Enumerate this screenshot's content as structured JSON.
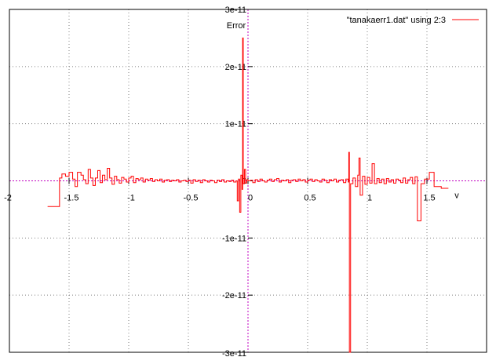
{
  "chart_data": {
    "type": "line",
    "style": "steps",
    "title": "",
    "xlabel": "v",
    "ylabel": "Error",
    "xlim": [
      -2,
      2
    ],
    "ylim": [
      -3e-11,
      3e-11
    ],
    "xticks": [
      -2,
      -1.5,
      -1,
      -0.5,
      0,
      0.5,
      1,
      1.5
    ],
    "xtick_labels": [
      "-2",
      "-1.5",
      "-1",
      "-0.5",
      "0",
      "0.5",
      "1",
      "1.5"
    ],
    "yticks": [
      -3e-11,
      -2e-11,
      -1e-11,
      0,
      1e-11,
      2e-11,
      3e-11
    ],
    "ytick_labels": [
      "-3e-11",
      "-2e-11",
      "-1e-11",
      "0",
      "1e-11",
      "2e-11",
      "3e-11"
    ],
    "grid": true,
    "axes_style": "zero-axes",
    "legend_position": "top-right",
    "colors": {
      "series": "#ff0000",
      "zero_axis": "#c000c0",
      "grid": "#808080",
      "frame": "#000000"
    },
    "series": [
      {
        "name": "\"tanakaerr1.dat\" using 2:3",
        "points": [
          [
            -1.68,
            -4.5e-12
          ],
          [
            -1.58,
            5e-13
          ],
          [
            -1.56,
            1.2e-12
          ],
          [
            -1.53,
            8e-13
          ],
          [
            -1.5,
            1.5e-12
          ],
          [
            -1.47,
            3e-13
          ],
          [
            -1.45,
            -1e-12
          ],
          [
            -1.43,
            1.5e-12
          ],
          [
            -1.4,
            1e-12
          ],
          [
            -1.38,
            2e-13
          ],
          [
            -1.36,
            -5e-13
          ],
          [
            -1.34,
            2e-12
          ],
          [
            -1.32,
            5e-13
          ],
          [
            -1.3,
            -8e-13
          ],
          [
            -1.28,
            5e-13
          ],
          [
            -1.26,
            1.8e-12
          ],
          [
            -1.24,
            -3e-13
          ],
          [
            -1.22,
            1e-12
          ],
          [
            -1.2,
            2e-13
          ],
          [
            -1.18,
            2.2e-12
          ],
          [
            -1.16,
            5e-13
          ],
          [
            -1.14,
            -6e-13
          ],
          [
            -1.12,
            8e-13
          ],
          [
            -1.1,
            2e-13
          ],
          [
            -1.08,
            -4e-13
          ],
          [
            -1.06,
            6e-13
          ],
          [
            -1.04,
            3e-13
          ],
          [
            -1.02,
            -2e-13
          ],
          [
            -1.0,
            5e-13
          ],
          [
            -0.98,
            8e-13
          ],
          [
            -0.96,
            -3e-13
          ],
          [
            -0.94,
            4e-13
          ],
          [
            -0.92,
            2e-13
          ],
          [
            -0.9,
            5e-13
          ],
          [
            -0.88,
            -2e-13
          ],
          [
            -0.86,
            3e-13
          ],
          [
            -0.84,
            1e-13
          ],
          [
            -0.82,
            4e-13
          ],
          [
            -0.8,
            -1e-13
          ],
          [
            -0.78,
            2e-13
          ],
          [
            -0.76,
            0.0
          ],
          [
            -0.74,
            3e-13
          ],
          [
            -0.72,
            -2e-13
          ],
          [
            -0.7,
            1e-13
          ],
          [
            -0.68,
            2e-13
          ],
          [
            -0.66,
            -1e-13
          ],
          [
            -0.64,
            1e-13
          ],
          [
            -0.62,
            0.0
          ],
          [
            -0.6,
            2e-13
          ],
          [
            -0.58,
            -2e-13
          ],
          [
            -0.56,
            0.0
          ],
          [
            -0.54,
            1e-13
          ],
          [
            -0.52,
            -1e-13
          ],
          [
            -0.5,
            1e-13
          ],
          [
            -0.48,
            -4e-13
          ],
          [
            -0.46,
            2e-13
          ],
          [
            -0.44,
            -1e-13
          ],
          [
            -0.42,
            1e-13
          ],
          [
            -0.4,
            -3e-13
          ],
          [
            -0.38,
            2e-13
          ],
          [
            -0.36,
            0.0
          ],
          [
            -0.34,
            -2e-13
          ],
          [
            -0.32,
            1e-13
          ],
          [
            -0.3,
            0.0
          ],
          [
            -0.28,
            -3e-13
          ],
          [
            -0.26,
            1e-13
          ],
          [
            -0.24,
            -1e-13
          ],
          [
            -0.22,
            2e-13
          ],
          [
            -0.2,
            -2e-13
          ],
          [
            -0.18,
            0.0
          ],
          [
            -0.16,
            -1e-13
          ],
          [
            -0.14,
            1e-13
          ],
          [
            -0.12,
            -2e-13
          ],
          [
            -0.1,
            0.0
          ],
          [
            -0.09,
            -3.5e-12
          ],
          [
            -0.08,
            3e-13
          ],
          [
            -0.07,
            -5.5e-12
          ],
          [
            -0.06,
            1e-12
          ],
          [
            -0.05,
            -1.5e-12
          ],
          [
            -0.045,
            2.5e-11
          ],
          [
            -0.04,
            -5e-13
          ],
          [
            -0.03,
            2e-12
          ],
          [
            -0.02,
            -4e-13
          ],
          [
            -0.01,
            2e-13
          ],
          [
            0.0,
            0.0
          ],
          [
            0.02,
            1e-13
          ],
          [
            0.04,
            -3e-13
          ],
          [
            0.06,
            2e-13
          ],
          [
            0.08,
            -1e-13
          ],
          [
            0.1,
            3e-13
          ],
          [
            0.12,
            0.0
          ],
          [
            0.14,
            -2e-13
          ],
          [
            0.16,
            1e-13
          ],
          [
            0.18,
            3e-13
          ],
          [
            0.2,
            -1e-13
          ],
          [
            0.22,
            2e-13
          ],
          [
            0.24,
            4e-13
          ],
          [
            0.26,
            -2e-13
          ],
          [
            0.28,
            1e-13
          ],
          [
            0.3,
            0.0
          ],
          [
            0.32,
            2e-13
          ],
          [
            0.34,
            -3e-13
          ],
          [
            0.36,
            1e-13
          ],
          [
            0.38,
            2e-13
          ],
          [
            0.4,
            -1e-13
          ],
          [
            0.42,
            3e-13
          ],
          [
            0.44,
            0.0
          ],
          [
            0.46,
            2e-13
          ],
          [
            0.48,
            -2e-13
          ],
          [
            0.5,
            1e-13
          ],
          [
            0.52,
            3e-13
          ],
          [
            0.54,
            -1e-13
          ],
          [
            0.56,
            2e-13
          ],
          [
            0.58,
            0.0
          ],
          [
            0.6,
            -2e-13
          ],
          [
            0.62,
            3e-13
          ],
          [
            0.64,
            1e-13
          ],
          [
            0.66,
            -3e-13
          ],
          [
            0.68,
            2e-13
          ],
          [
            0.7,
            0.0
          ],
          [
            0.72,
            3e-13
          ],
          [
            0.74,
            -2e-13
          ],
          [
            0.76,
            1e-13
          ],
          [
            0.78,
            2e-13
          ],
          [
            0.8,
            -3e-13
          ],
          [
            0.82,
            3e-13
          ],
          [
            0.84,
            -2e-13
          ],
          [
            0.845,
            5e-12
          ],
          [
            0.85,
            -3e-11
          ],
          [
            0.86,
            -5e-13
          ],
          [
            0.88,
            5e-13
          ],
          [
            0.9,
            -1e-12
          ],
          [
            0.92,
            1e-12
          ],
          [
            0.93,
            4e-12
          ],
          [
            0.94,
            -2.5e-12
          ],
          [
            0.96,
            8e-13
          ],
          [
            0.98,
            -6e-13
          ],
          [
            1.0,
            6e-13
          ],
          [
            1.02,
            -4e-13
          ],
          [
            1.04,
            3e-12
          ],
          [
            1.06,
            -5e-13
          ],
          [
            1.08,
            4e-13
          ],
          [
            1.1,
            -3e-13
          ],
          [
            1.12,
            3e-13
          ],
          [
            1.14,
            -5e-13
          ],
          [
            1.16,
            4e-13
          ],
          [
            1.18,
            -2e-13
          ],
          [
            1.2,
            2e-13
          ],
          [
            1.22,
            -4e-13
          ],
          [
            1.24,
            3e-13
          ],
          [
            1.26,
            1e-13
          ],
          [
            1.28,
            -3e-13
          ],
          [
            1.3,
            5e-13
          ],
          [
            1.32,
            -4e-13
          ],
          [
            1.34,
            2e-13
          ],
          [
            1.36,
            6e-13
          ],
          [
            1.38,
            -5e-13
          ],
          [
            1.4,
            7e-13
          ],
          [
            1.42,
            -7e-12
          ],
          [
            1.45,
            -5e-13
          ],
          [
            1.48,
            3e-13
          ],
          [
            1.52,
            1.5e-12
          ],
          [
            1.56,
            -1e-12
          ],
          [
            1.62,
            -1.3e-12
          ],
          [
            1.68,
            -1.3e-12
          ]
        ]
      }
    ]
  }
}
